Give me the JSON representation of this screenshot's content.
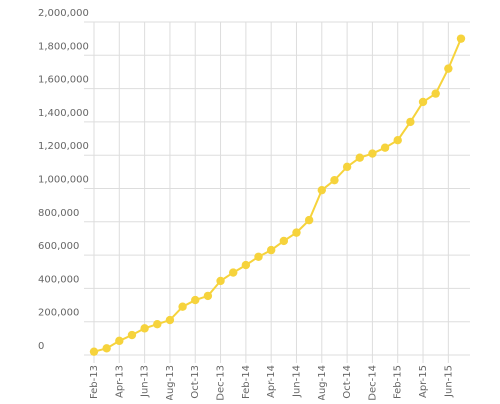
{
  "chart_data": {
    "type": "line",
    "categories": [
      "Feb-13",
      null,
      "Apr-13",
      null,
      "Jun-13",
      null,
      "Aug-13",
      null,
      "Oct-13",
      null,
      "Dec-13",
      null,
      "Feb-14",
      null,
      "Apr-14",
      null,
      "Jun-14",
      null,
      "Aug-14",
      null,
      "Oct-14",
      null,
      "Dec-14",
      null,
      "Feb-15",
      null,
      "Apr-15",
      null,
      "Jun-15",
      null
    ],
    "series": [
      {
        "color": "#f6d33c",
        "values": [
          20000,
          40000,
          85000,
          120000,
          160000,
          185000,
          210000,
          290000,
          330000,
          355000,
          445000,
          495000,
          540000,
          590000,
          630000,
          685000,
          735000,
          810000,
          990000,
          1050000,
          1130000,
          1185000,
          1210000,
          1245000,
          1290000,
          1400000,
          1520000,
          1570000,
          1720000,
          1900000
        ]
      }
    ],
    "ylim": [
      0,
      2000000
    ],
    "yticks": [
      0,
      {
        "value": 200000,
        "label": "200,000"
      },
      {
        "value": 400000,
        "label": "400,000"
      },
      {
        "value": 600000,
        "label": "600,000"
      },
      {
        "value": 800000,
        "label": "800,000"
      },
      {
        "value": 1000000,
        "label": "1,000,000"
      },
      {
        "value": 1200000,
        "label": "1,200,000"
      },
      {
        "value": 1400000,
        "label": "1,400,000"
      },
      {
        "value": 1600000,
        "label": "1,600,000"
      },
      {
        "value": 1800000,
        "label": "1,800,000"
      },
      {
        "value": 2000000,
        "label": "2,000,000"
      }
    ],
    "grid": true
  }
}
